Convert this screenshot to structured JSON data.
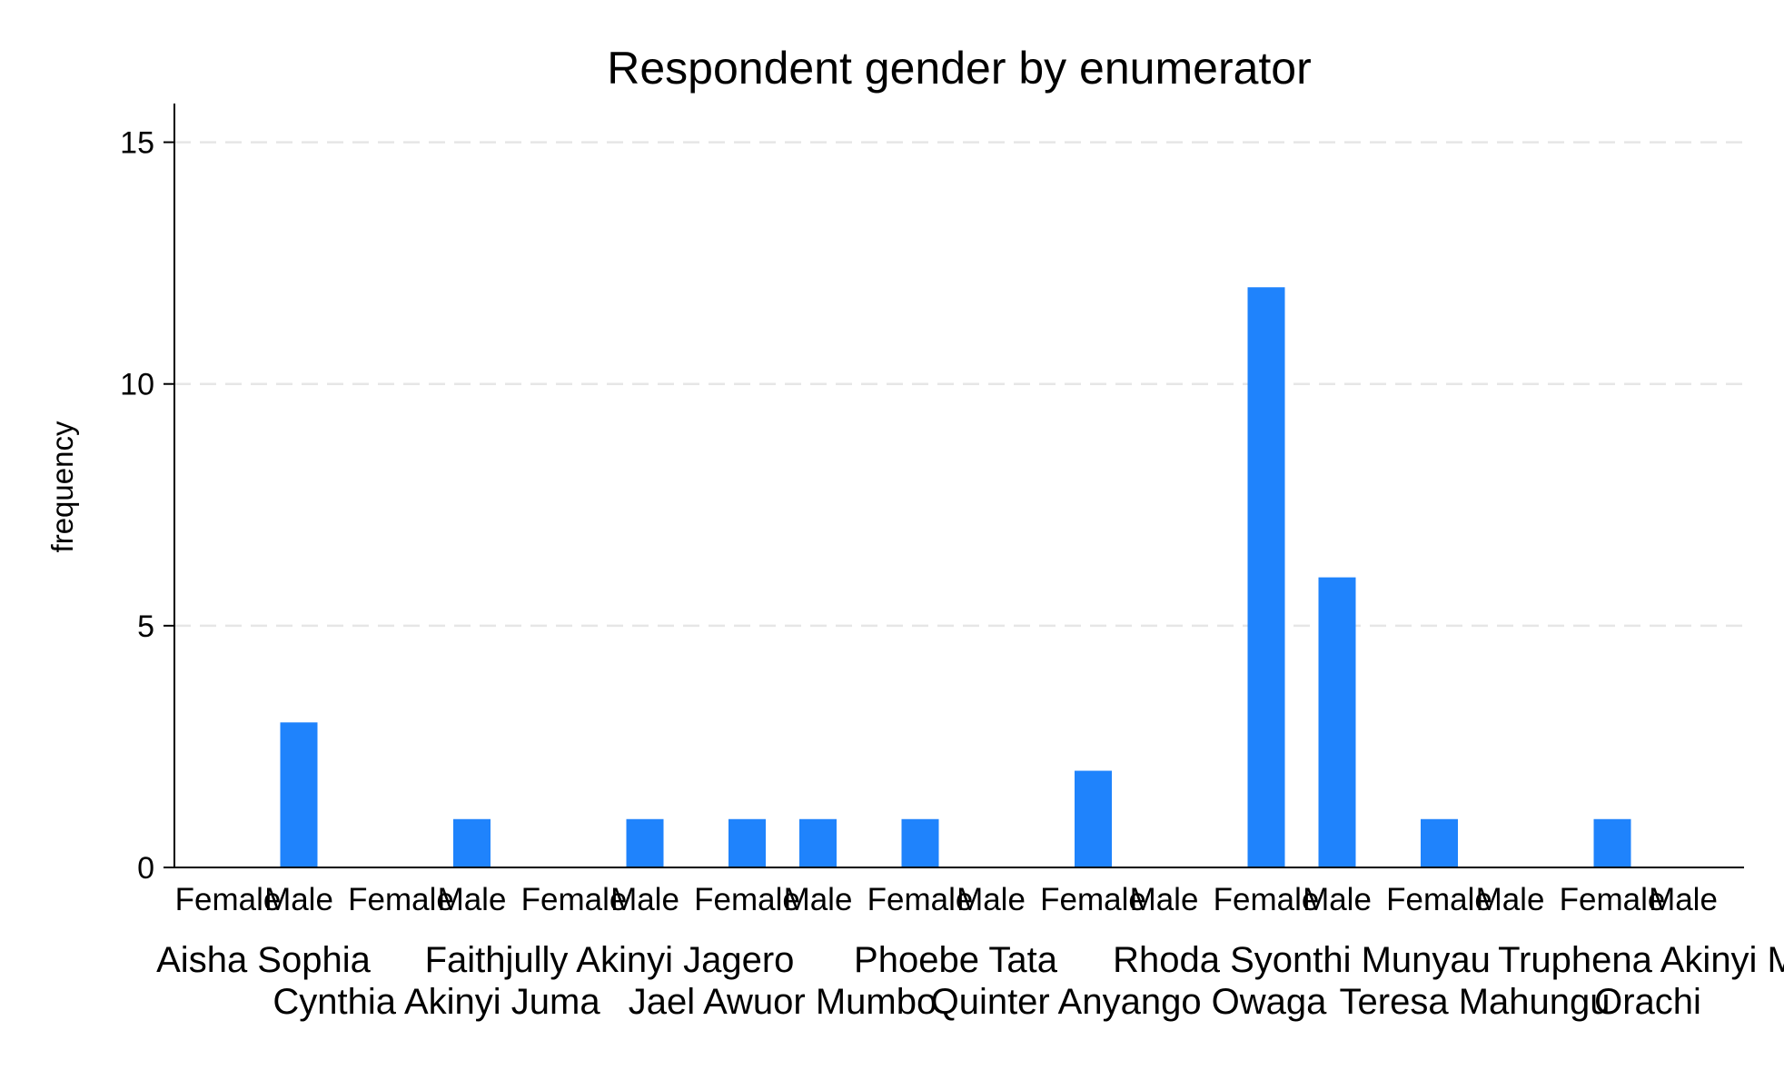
{
  "chart_data": {
    "type": "bar",
    "title": "Respondent gender by enumerator",
    "ylabel": "frequency",
    "xlabel": "",
    "ylim": [
      0,
      15.8
    ],
    "yticks": [
      0,
      5,
      10,
      15
    ],
    "grid": true,
    "bar_color": "#1f83fc",
    "groups": [
      {
        "name": "Aisha Sophia",
        "bars": [
          {
            "label": "Female",
            "value": 0
          },
          {
            "label": "Male",
            "value": 3
          }
        ]
      },
      {
        "name": "Cynthia Akinyi Juma",
        "bars": [
          {
            "label": "Female",
            "value": 0
          },
          {
            "label": "Male",
            "value": 1
          }
        ]
      },
      {
        "name": "Faithjully Akinyi Jagero",
        "bars": [
          {
            "label": "Female",
            "value": 0
          },
          {
            "label": "Male",
            "value": 1
          }
        ]
      },
      {
        "name": "Jael Awuor Mumbo",
        "bars": [
          {
            "label": "Female",
            "value": 1
          },
          {
            "label": "Male",
            "value": 1
          }
        ]
      },
      {
        "name": "Phoebe Tata",
        "bars": [
          {
            "label": "Female",
            "value": 1
          },
          {
            "label": "Male",
            "value": 0
          }
        ]
      },
      {
        "name": "Quinter Anyango Owaga",
        "bars": [
          {
            "label": "Female",
            "value": 2
          },
          {
            "label": "Male",
            "value": 0
          }
        ]
      },
      {
        "name": "Rhoda Syonthi Munyau",
        "bars": [
          {
            "label": "Female",
            "value": 12
          },
          {
            "label": "Male",
            "value": 6
          }
        ]
      },
      {
        "name": "Teresa Mahungu",
        "bars": [
          {
            "label": "Female",
            "value": 1
          },
          {
            "label": "Male",
            "value": 0
          }
        ]
      },
      {
        "name": "Truphena Akinyi Orachi",
        "bars": [
          {
            "label": "Female",
            "value": 1
          },
          {
            "label": "Male",
            "value": 0
          }
        ]
      }
    ],
    "group_label_text": [
      {
        "text": "Aisha Sophia",
        "row": 0,
        "anchor_group": 0
      },
      {
        "text": "Faithjully Akinyi Jagero",
        "row": 0,
        "anchor_group": 2
      },
      {
        "text": "Phoebe Tata",
        "row": 0,
        "anchor_group": 4
      },
      {
        "text": "Rhoda Syonthi Munyau",
        "row": 0,
        "anchor_group": 6
      },
      {
        "text": "Truphena Akinyi M",
        "row": 0,
        "anchor_group": 8
      },
      {
        "text": "Cynthia Akinyi Juma",
        "row": 1,
        "anchor_group": 1
      },
      {
        "text": "Jael Awuor Mumbo",
        "row": 1,
        "anchor_group": 3
      },
      {
        "text": "Quinter Anyango Owaga",
        "row": 1,
        "anchor_group": 5
      },
      {
        "text": "Teresa Mahungu",
        "row": 1,
        "anchor_group": 7
      },
      {
        "text": "Orachi",
        "row": 1,
        "anchor_group": 8
      }
    ]
  }
}
